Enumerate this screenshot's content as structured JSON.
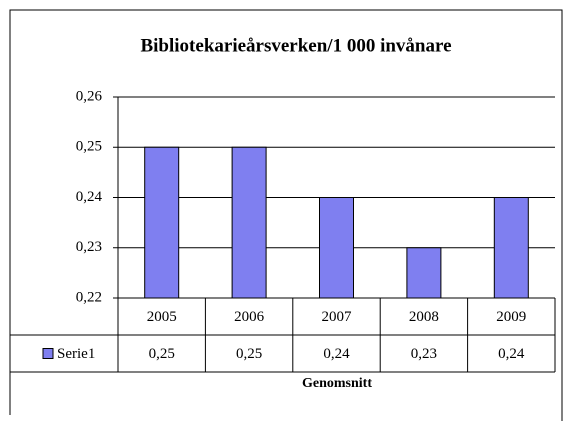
{
  "chart_data": {
    "type": "bar",
    "title": "Bibliotekarieårsverken/1 000 invånare",
    "categories": [
      "2005",
      "2006",
      "2007",
      "2008",
      "2009"
    ],
    "series": [
      {
        "name": "Serie1",
        "color": "#7f7ff0",
        "values": [
          0.25,
          0.25,
          0.24,
          0.23,
          0.24
        ],
        "value_labels": [
          "0,25",
          "0,25",
          "0,24",
          "0,23",
          "0,24"
        ]
      }
    ],
    "ylim": [
      0.22,
      0.26
    ],
    "yticks": [
      {
        "value": 0.22,
        "label": "0,22"
      },
      {
        "value": 0.23,
        "label": "0,23"
      },
      {
        "value": 0.24,
        "label": "0,24"
      },
      {
        "value": 0.25,
        "label": "0,25"
      },
      {
        "value": 0.26,
        "label": "0,26"
      }
    ],
    "xlabel": "Genomsnitt",
    "grid": true
  }
}
